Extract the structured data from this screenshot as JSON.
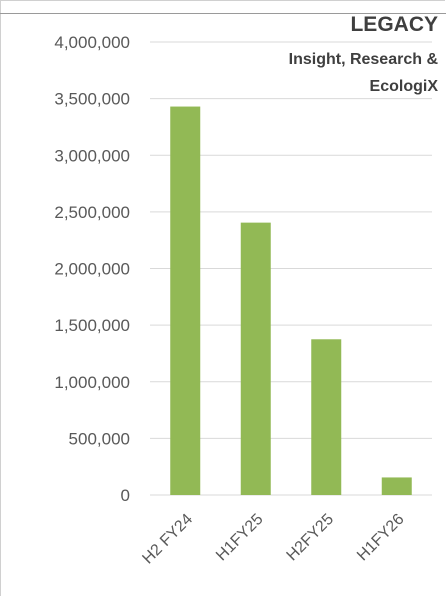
{
  "chart_data": {
    "type": "bar",
    "title": "LEGACY",
    "subtitle_lines": [
      "Insight, Research &",
      "EcologiX"
    ],
    "categories": [
      "H2 FY24",
      "H1FY25",
      "H2FY25",
      "H1FY26"
    ],
    "values": [
      3430000,
      2405000,
      1375000,
      155000
    ],
    "ylim": [
      0,
      4000000
    ],
    "yticks": [
      0,
      500000,
      1000000,
      1500000,
      2000000,
      2500000,
      3000000,
      3500000,
      4000000
    ],
    "ytick_labels": [
      "0",
      "500,000",
      "1,000,000",
      "1,500,000",
      "2,000,000",
      "2,500,000",
      "3,000,000",
      "3,500,000",
      "4,000,000"
    ],
    "grid": true,
    "bar_color": "#92b955",
    "gridline_color": "#d9d9d9"
  }
}
